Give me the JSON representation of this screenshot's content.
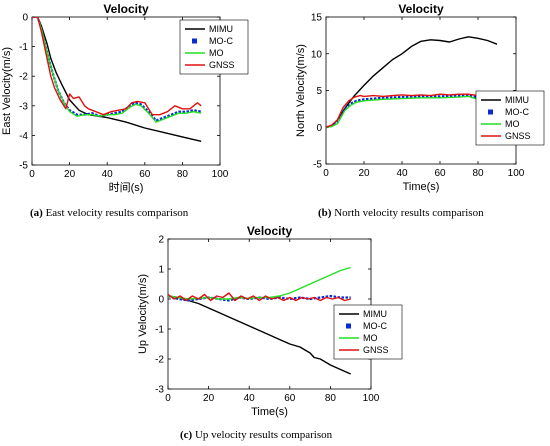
{
  "colors": {
    "MIMU": "#000000",
    "MO-C": "#0a2ad6",
    "MO": "#22e022",
    "GNSS": "#e01010"
  },
  "captions": [
    {
      "letter": "(a)",
      "text": " East velocity results comparison"
    },
    {
      "letter": "(b)",
      "text": " North velocity results comparison"
    },
    {
      "letter": "(c)",
      "text": " Up velocity results comparison"
    }
  ],
  "chart_data": [
    {
      "type": "line",
      "title": "Velocity",
      "xlabel": "时间(s)",
      "ylabel": "East Velocity(m/s)",
      "xlim": [
        0,
        100
      ],
      "ylim": [
        -5,
        0
      ],
      "xticks": [
        0,
        20,
        40,
        60,
        80,
        100
      ],
      "yticks": [
        -5,
        -4,
        -3,
        -2,
        -1,
        0
      ],
      "legend": "top-right",
      "series": [
        {
          "name": "MIMU",
          "x": [
            0,
            3,
            5,
            8,
            10,
            13,
            16,
            20,
            25,
            30,
            40,
            50,
            60,
            70,
            80,
            90
          ],
          "y": [
            0,
            0,
            -0.3,
            -0.9,
            -1.4,
            -1.9,
            -2.3,
            -2.8,
            -3.15,
            -3.3,
            -3.4,
            -3.55,
            -3.75,
            -3.9,
            -4.05,
            -4.2
          ]
        },
        {
          "name": "MO-C",
          "x": [
            0,
            3,
            5,
            8,
            11,
            14,
            17,
            20,
            24,
            28,
            32,
            36,
            40,
            44,
            48,
            52,
            55,
            58,
            62,
            66,
            70,
            74,
            78,
            82,
            86,
            90
          ],
          "y": [
            0,
            0,
            -0.4,
            -1.2,
            -1.9,
            -2.5,
            -2.9,
            -3.15,
            -3.3,
            -3.3,
            -3.25,
            -3.35,
            -3.3,
            -3.25,
            -3.2,
            -3.0,
            -2.9,
            -2.95,
            -3.2,
            -3.5,
            -3.4,
            -3.3,
            -3.2,
            -3.2,
            -3.15,
            -3.2
          ]
        },
        {
          "name": "MO",
          "x": [
            0,
            3,
            5,
            8,
            11,
            14,
            17,
            20,
            24,
            28,
            32,
            36,
            40,
            44,
            48,
            52,
            55,
            58,
            62,
            66,
            70,
            74,
            78,
            82,
            86,
            90
          ],
          "y": [
            0,
            0,
            -0.4,
            -1.2,
            -1.9,
            -2.5,
            -2.9,
            -3.2,
            -3.35,
            -3.3,
            -3.3,
            -3.35,
            -3.3,
            -3.3,
            -3.25,
            -3.05,
            -2.95,
            -3.0,
            -3.25,
            -3.55,
            -3.45,
            -3.35,
            -3.25,
            -3.25,
            -3.2,
            -3.25
          ]
        },
        {
          "name": "GNSS",
          "x": [
            0,
            3,
            5,
            8,
            10,
            12,
            15,
            18,
            20,
            22,
            25,
            28,
            30,
            34,
            38,
            42,
            46,
            50,
            53,
            56,
            60,
            64,
            68,
            72,
            76,
            80,
            84,
            88,
            90
          ],
          "y": [
            0,
            0,
            -0.5,
            -1.4,
            -2.0,
            -2.4,
            -2.8,
            -3.1,
            -2.6,
            -2.75,
            -2.7,
            -3.0,
            -3.1,
            -3.2,
            -3.3,
            -3.2,
            -3.15,
            -3.1,
            -2.9,
            -2.85,
            -2.9,
            -3.3,
            -3.3,
            -3.2,
            -3.0,
            -3.1,
            -3.1,
            -2.9,
            -3.0
          ]
        }
      ]
    },
    {
      "type": "line",
      "title": "Velocity",
      "xlabel": "Time(s)",
      "ylabel": "North Velocity(m/s)",
      "xlim": [
        0,
        100
      ],
      "ylim": [
        -5,
        15
      ],
      "xticks": [
        0,
        20,
        40,
        60,
        80,
        100
      ],
      "yticks": [
        -5,
        0,
        5,
        10,
        15
      ],
      "legend": "bottom-right",
      "series": [
        {
          "name": "MIMU",
          "x": [
            0,
            3,
            6,
            10,
            15,
            20,
            25,
            30,
            35,
            40,
            45,
            50,
            55,
            60,
            65,
            70,
            75,
            80,
            85,
            90
          ],
          "y": [
            0,
            0.2,
            1.0,
            2.6,
            4.3,
            5.7,
            7.0,
            8.1,
            9.2,
            10.0,
            11.0,
            11.7,
            11.9,
            11.8,
            11.6,
            12.0,
            12.3,
            12.1,
            11.8,
            11.3
          ]
        },
        {
          "name": "MO-C",
          "x": [
            0,
            3,
            6,
            10,
            13,
            16,
            20,
            25,
            30,
            40,
            50,
            60,
            70,
            75,
            80,
            85,
            90
          ],
          "y": [
            0,
            0.2,
            0.6,
            2.5,
            3.2,
            3.6,
            3.8,
            3.9,
            4.0,
            4.1,
            4.2,
            4.2,
            4.3,
            4.4,
            4.0,
            4.0,
            4.0
          ]
        },
        {
          "name": "MO",
          "x": [
            0,
            3,
            6,
            10,
            13,
            16,
            20,
            25,
            30,
            40,
            50,
            60,
            70,
            75,
            80,
            85,
            90
          ],
          "y": [
            0,
            0.1,
            0.5,
            2.3,
            3.0,
            3.4,
            3.6,
            3.7,
            3.8,
            3.9,
            4.0,
            4.0,
            4.1,
            4.2,
            3.8,
            3.8,
            3.8
          ]
        },
        {
          "name": "GNSS",
          "x": [
            0,
            3,
            6,
            9,
            12,
            15,
            18,
            20,
            25,
            30,
            35,
            40,
            45,
            50,
            55,
            60,
            65,
            70,
            75,
            80,
            85,
            90
          ],
          "y": [
            0,
            0.3,
            1.0,
            2.7,
            3.6,
            4.1,
            4.3,
            4.2,
            4.3,
            4.2,
            4.3,
            4.4,
            4.3,
            4.4,
            4.3,
            4.5,
            4.4,
            4.5,
            4.5,
            4.3,
            4.2,
            4.2
          ]
        }
      ]
    },
    {
      "type": "line",
      "title": "Velocity",
      "xlabel": "Time(s)",
      "ylabel": "Up Velocity(m/s)",
      "xlim": [
        0,
        100
      ],
      "ylim": [
        -3,
        2
      ],
      "xticks": [
        0,
        20,
        40,
        60,
        80,
        100
      ],
      "yticks": [
        -3,
        -2,
        -1,
        0,
        1,
        2
      ],
      "legend": "bottom-right",
      "series": [
        {
          "name": "MIMU",
          "x": [
            0,
            5,
            10,
            15,
            20,
            25,
            30,
            35,
            40,
            45,
            50,
            55,
            60,
            65,
            70,
            72,
            75,
            80,
            85,
            90
          ],
          "y": [
            0.1,
            0.05,
            -0.05,
            -0.15,
            -0.3,
            -0.45,
            -0.6,
            -0.75,
            -0.9,
            -1.05,
            -1.2,
            -1.35,
            -1.5,
            -1.6,
            -1.8,
            -1.95,
            -2.0,
            -2.2,
            -2.35,
            -2.5
          ]
        },
        {
          "name": "MO-C",
          "x": [
            0,
            5,
            10,
            15,
            20,
            25,
            30,
            35,
            40,
            45,
            50,
            55,
            60,
            65,
            70,
            75,
            80,
            85,
            90
          ],
          "y": [
            0.1,
            0.0,
            -0.05,
            0.0,
            0.05,
            0.0,
            -0.05,
            0.05,
            0.0,
            0.05,
            0.0,
            0.05,
            0.0,
            0.05,
            0.0,
            0.05,
            0.1,
            0.05,
            0.05
          ]
        },
        {
          "name": "MO",
          "x": [
            0,
            5,
            10,
            15,
            20,
            25,
            30,
            35,
            40,
            45,
            50,
            55,
            60,
            65,
            70,
            75,
            80,
            85,
            90
          ],
          "y": [
            0.1,
            0.05,
            0.0,
            0.02,
            0.05,
            0.0,
            0.0,
            0.05,
            0.02,
            0.05,
            0.05,
            0.1,
            0.2,
            0.35,
            0.5,
            0.65,
            0.8,
            0.95,
            1.05
          ]
        },
        {
          "name": "GNSS",
          "x": [
            0,
            3,
            6,
            9,
            12,
            15,
            18,
            21,
            24,
            27,
            30,
            33,
            36,
            39,
            42,
            45,
            48,
            51,
            54,
            57,
            60,
            63,
            66,
            69,
            72,
            75,
            78,
            81,
            84,
            87,
            90
          ],
          "y": [
            0.15,
            0.0,
            0.1,
            -0.05,
            0.1,
            0.0,
            0.15,
            -0.05,
            0.1,
            0.05,
            0.2,
            -0.05,
            0.1,
            0.0,
            0.1,
            -0.05,
            0.1,
            0.0,
            0.05,
            -0.05,
            0.05,
            -0.05,
            0.05,
            0.0,
            0.05,
            -0.05,
            0.05,
            0.0,
            0.05,
            -0.05,
            0.0
          ]
        }
      ]
    }
  ]
}
